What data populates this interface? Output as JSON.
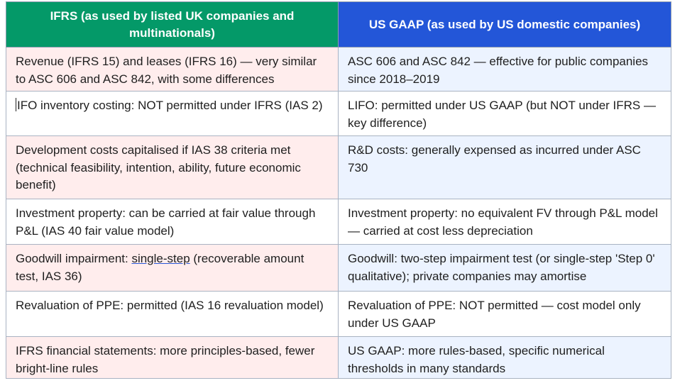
{
  "headers": {
    "ifrs": "IFRS (as used by listed UK companies and multinationals)",
    "gaap": "US GAAP (as used by US domestic companies)"
  },
  "rows": [
    {
      "ifrs": "Revenue (IFRS 15) and leases (IFRS 16) — very similar to ASC 606 and ASC 842, with some differences",
      "gaap": "ASC 606 and ASC 842 — effective for public companies since 2018–2019"
    },
    {
      "ifrs": "IFO inventory costing: NOT permitted under IFRS (IAS 2)",
      "gaap": "LIFO: permitted under US GAAP (but NOT under IFRS — key difference)"
    },
    {
      "ifrs": "Development costs capitalised if IAS 38 criteria met (technical feasibility, intention, ability, future economic benefit)",
      "gaap": "R&D costs: generally expensed as incurred under ASC 730"
    },
    {
      "ifrs": "Investment property: can be carried at fair value through P&L (IAS 40 fair value model)",
      "gaap": "Investment property: no equivalent FV through P&L model — carried at cost less depreciation"
    },
    {
      "ifrs_prefix": "Goodwill impairment: ",
      "ifrs_link": "single-step",
      "ifrs_suffix": " (recoverable amount test, IAS 36)",
      "gaap": "Goodwill: two-step impairment test (or single-step 'Step 0' qualitative); private companies may amortise"
    },
    {
      "ifrs": "Revaluation of PPE: permitted (IAS 16 revaluation model)",
      "gaap": "Revaluation of PPE: NOT permitted — cost model only under US GAAP"
    },
    {
      "ifrs": "IFRS financial statements: more principles-based, fewer bright-line rules",
      "gaap": "US GAAP: more rules-based, specific numerical thresholds in many standards"
    }
  ]
}
